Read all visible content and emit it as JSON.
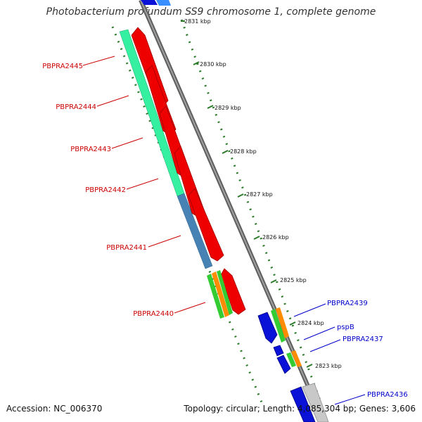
{
  "title": "Photobacterium profundum SS9 chromosome 1, complete genome",
  "accession_text": "Accession: NC_006370",
  "summary_text": "Topology: circular; Length: 4,085,304 bp; Genes: 3,606",
  "colors": {
    "backbone": "#7a7a7a",
    "ruler_green": "#2a7a2a",
    "label_red": "#cc0000",
    "label_blue": "#0000cc",
    "cds_red": "#ee0000",
    "cds_blue": "#0a12d8",
    "cds_orange": "#ff8c00",
    "cds_green": "#33cc33",
    "seafoam": "#35f0a0",
    "steel_blue": "#4682b4",
    "light_gray": "#c8c8c8",
    "light_blue": "#3a8fff"
  },
  "ruler_ticks": [
    "2831 kbp",
    "2830 kbp",
    "2829 kbp",
    "2828 kbp",
    "2827 kbp",
    "2826 kbp",
    "2825 kbp",
    "2824 kbp",
    "2823 kbp"
  ],
  "labels_left": [
    "PBPRA2445",
    "PBPRA2444",
    "PBPRA2443",
    "PBPRA2442",
    "PBPRA2441",
    "PBPRA2440"
  ],
  "labels_right": [
    "PBPRA2439",
    "pspB",
    "PBPRA2437",
    "PBPRA2436"
  ]
}
